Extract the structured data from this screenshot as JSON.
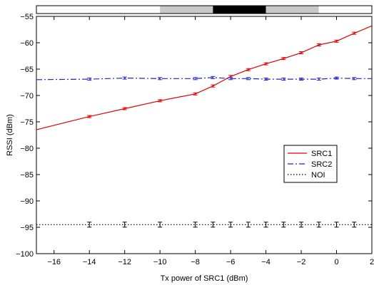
{
  "chart_data": {
    "type": "line",
    "title": "",
    "xlabel": "Tx power of SRC1 (dBm)",
    "ylabel": "RSSI (dBm)",
    "xlim": [
      -17,
      2
    ],
    "ylim": [
      -100,
      -55
    ],
    "xticks": [
      -16,
      -14,
      -12,
      -10,
      -8,
      -6,
      -4,
      -2,
      0,
      2
    ],
    "yticks": [
      -100,
      -95,
      -90,
      -85,
      -80,
      -75,
      -70,
      -65,
      -60,
      -55
    ],
    "grid": false,
    "legend_position": "right",
    "series": [
      {
        "name": "SRC1",
        "color": "#e00000",
        "dash": "solid",
        "x": [
          -17,
          -14,
          -12,
          -10,
          -8,
          -7,
          -6,
          -5,
          -4,
          -3,
          -2,
          -1,
          0,
          1,
          2
        ],
        "y": [
          -76.5,
          -74.0,
          -72.5,
          -71.0,
          -69.7,
          -68.2,
          -66.4,
          -65.1,
          -64.0,
          -63.0,
          -61.9,
          -60.4,
          -59.7,
          -58.2,
          -56.8
        ]
      },
      {
        "name": "SRC2",
        "color": "#2222cc",
        "dash": "dashdot",
        "x": [
          -17,
          -14,
          -12,
          -10,
          -8,
          -7,
          -6,
          -5,
          -4,
          -3,
          -2,
          -1,
          0,
          1,
          2
        ],
        "y": [
          -67.0,
          -66.9,
          -66.7,
          -66.8,
          -66.8,
          -66.6,
          -66.8,
          -66.8,
          -66.9,
          -66.9,
          -66.9,
          -66.9,
          -66.7,
          -66.8,
          -66.8
        ]
      },
      {
        "name": "NOI",
        "color": "#000000",
        "dash": "dotted",
        "x": [
          -17,
          -14,
          -12,
          -10,
          -8,
          -7,
          -6,
          -5,
          -4,
          -3,
          -2,
          -1,
          0,
          1,
          2
        ],
        "y": [
          -94.5,
          -94.5,
          -94.5,
          -94.5,
          -94.5,
          -94.5,
          -94.5,
          -94.5,
          -94.5,
          -94.5,
          -94.5,
          -94.5,
          -94.5,
          -94.5,
          -94.5
        ]
      }
    ],
    "top_bar_shades": [
      "#ffffff",
      "#c8c8c8",
      "#000000",
      "#c8c8c8",
      "#ffffff"
    ],
    "top_bar_segments_x": [
      -17,
      -10,
      -7,
      -4,
      -1,
      2
    ]
  }
}
